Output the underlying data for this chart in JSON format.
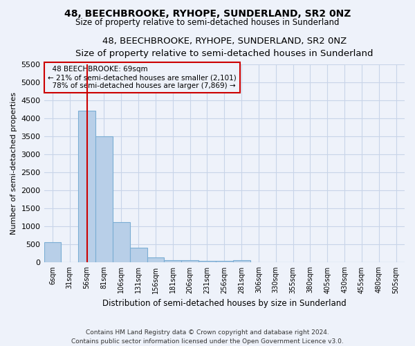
{
  "title1": "48, BEECHBROOKE, RYHOPE, SUNDERLAND, SR2 0NZ",
  "title2": "Size of property relative to semi-detached houses in Sunderland",
  "xlabel": "Distribution of semi-detached houses by size in Sunderland",
  "ylabel": "Number of semi-detached properties",
  "footer1": "Contains HM Land Registry data © Crown copyright and database right 2024.",
  "footer2": "Contains public sector information licensed under the Open Government Licence v3.0.",
  "bar_color": "#b8cfe8",
  "bar_edge_color": "#7aadd4",
  "categories": [
    "6sqm",
    "31sqm",
    "56sqm",
    "81sqm",
    "106sqm",
    "131sqm",
    "156sqm",
    "181sqm",
    "206sqm",
    "231sqm",
    "256sqm",
    "281sqm",
    "306sqm",
    "330sqm",
    "355sqm",
    "380sqm",
    "405sqm",
    "430sqm",
    "455sqm",
    "480sqm",
    "505sqm"
  ],
  "values": [
    570,
    0,
    4200,
    3500,
    1130,
    420,
    140,
    70,
    60,
    50,
    50,
    60,
    0,
    0,
    0,
    0,
    0,
    0,
    0,
    0,
    0
  ],
  "ylim": [
    0,
    5500
  ],
  "yticks": [
    0,
    500,
    1000,
    1500,
    2000,
    2500,
    3000,
    3500,
    4000,
    4500,
    5000,
    5500
  ],
  "property_label": "48 BEECHBROOKE: 69sqm",
  "pct_smaller": 21,
  "count_smaller": 2101,
  "pct_larger": 78,
  "count_larger": 7869,
  "annotation_box_color": "#cc0000",
  "vline_color": "#cc0000",
  "grid_color": "#c8d4e8",
  "bg_color": "#eef2fa",
  "vline_x_index": 2.52
}
